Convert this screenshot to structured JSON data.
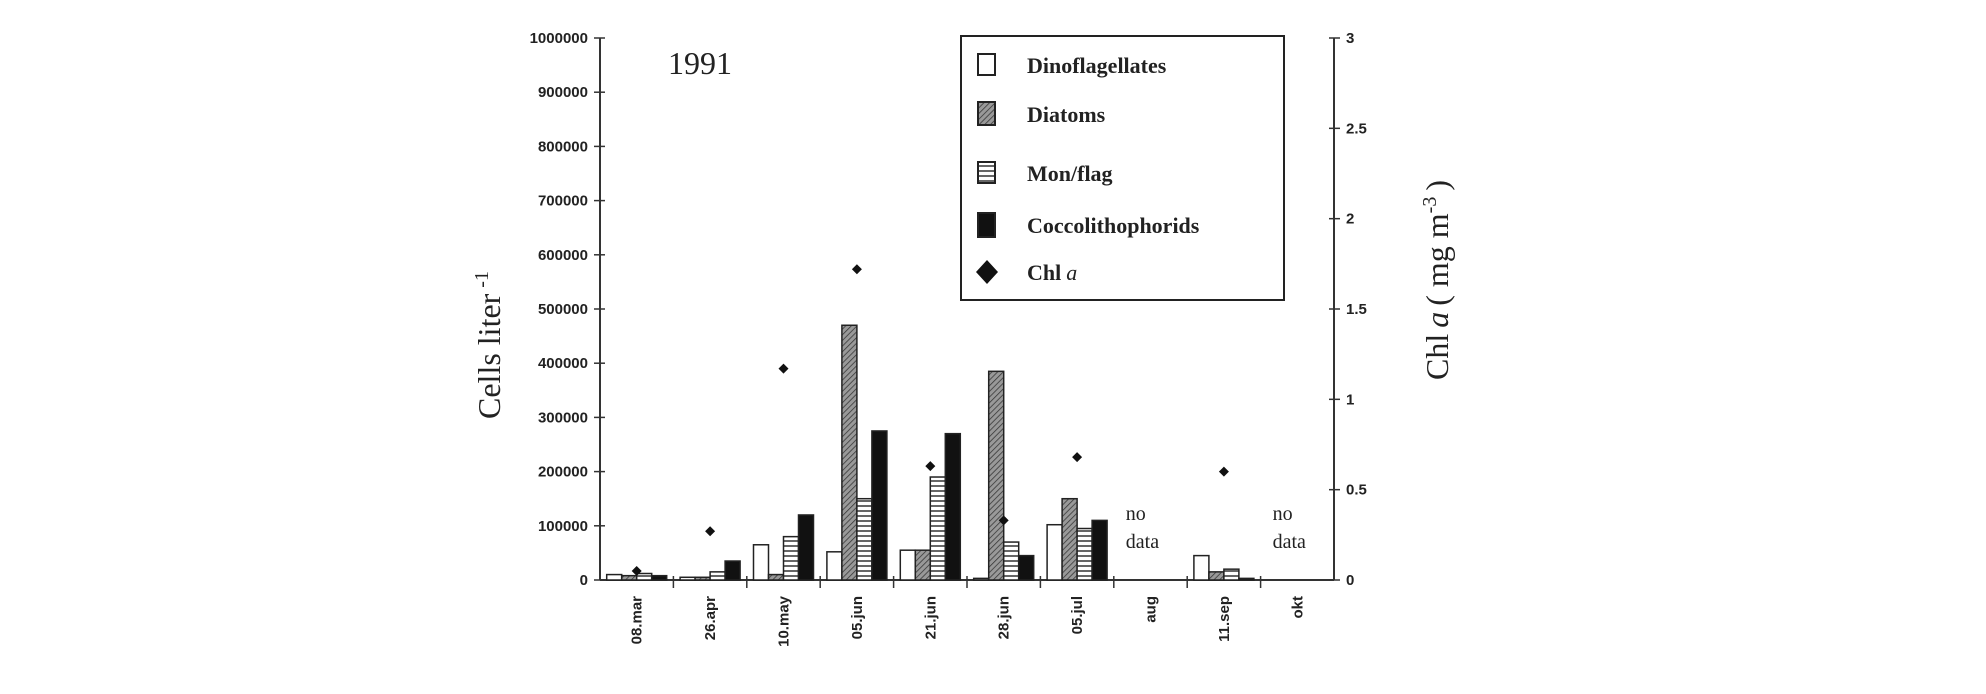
{
  "chart_data": {
    "type": "bar",
    "title": "1991",
    "xlabel": "",
    "ylabel": "Cells liter",
    "ylabel_sup": "-1",
    "y2label": "Chl",
    "y2label_italic": "a",
    "y2label_units": "( mg m",
    "y2label_sup": "-3",
    "y2label_close": ")",
    "ylim": [
      0,
      1000000
    ],
    "y2lim": [
      0,
      3
    ],
    "yticks": [
      "0",
      "100000",
      "200000",
      "300000",
      "400000",
      "500000",
      "600000",
      "700000",
      "800000",
      "900000",
      "1000000"
    ],
    "y2ticks": [
      "0",
      "0.5",
      "1",
      "1.5",
      "2",
      "2.5",
      "3"
    ],
    "categories": [
      "08.mar",
      "26.apr",
      "10.may",
      "05.jun",
      "21.jun",
      "28.jun",
      "05.jul",
      "aug",
      "11.sep",
      "okt"
    ],
    "series": [
      {
        "name": "Dinoflagellates",
        "values": [
          10000,
          5000,
          65000,
          52000,
          55000,
          3000,
          102000,
          null,
          45000,
          null
        ]
      },
      {
        "name": "Diatoms",
        "values": [
          8000,
          5000,
          10000,
          470000,
          55000,
          385000,
          150000,
          null,
          15000,
          null
        ]
      },
      {
        "name": "Mon/flag",
        "values": [
          12000,
          15000,
          80000,
          150000,
          190000,
          70000,
          95000,
          null,
          20000,
          null
        ]
      },
      {
        "name": "Coccolithophorids",
        "values": [
          8000,
          35000,
          120000,
          275000,
          270000,
          45000,
          110000,
          null,
          3000,
          null
        ]
      }
    ],
    "chl_series": {
      "name": "Chl",
      "name_italic": "a",
      "axis": "right",
      "values": [
        0.05,
        0.27,
        1.17,
        1.72,
        0.63,
        0.33,
        0.68,
        null,
        0.6,
        null
      ]
    },
    "annotations": [
      {
        "category": "aug",
        "lines": [
          "no",
          "data"
        ]
      },
      {
        "category": "okt",
        "lines": [
          "no",
          "data"
        ]
      }
    ],
    "legend_position": "top-right",
    "grid": false
  }
}
